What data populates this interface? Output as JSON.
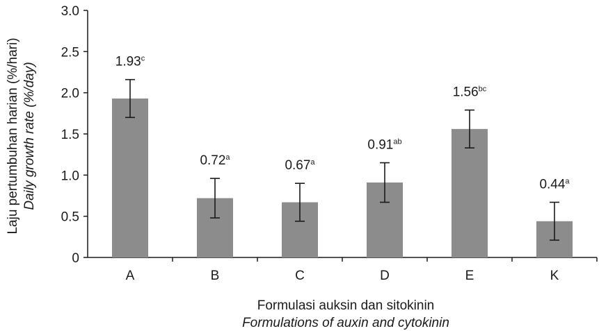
{
  "chart_data": {
    "type": "bar",
    "categories": [
      "A",
      "B",
      "C",
      "D",
      "E",
      "K"
    ],
    "values": [
      1.93,
      0.72,
      0.67,
      0.91,
      1.56,
      0.44
    ],
    "error_bars": [
      0.23,
      0.24,
      0.23,
      0.24,
      0.23,
      0.23
    ],
    "data_labels": [
      {
        "value": "1.93",
        "superscript": "c"
      },
      {
        "value": "0.72",
        "superscript": "a"
      },
      {
        "value": "0.67",
        "superscript": "a"
      },
      {
        "value": "0.91",
        "superscript": "ab"
      },
      {
        "value": "1.56",
        "superscript": "bc"
      },
      {
        "value": "0.44",
        "superscript": "a"
      }
    ],
    "ylim": [
      0,
      3.0
    ],
    "yticks": [
      "0",
      "0.5",
      "1.0",
      "1.5",
      "2.0",
      "2.5",
      "3.0"
    ],
    "xlabel_line1": "Formulasi auksin dan sitokinin",
    "xlabel_line2": "Formulations of auxin and cytokinin",
    "ylabel_line1": "Laju pertumbuhan harian (%/hari)",
    "ylabel_line2": "Daily growth rate (%/day)",
    "grid": false,
    "bar_color": "#8c8c8c",
    "axis_color": "#1a1a1a"
  }
}
